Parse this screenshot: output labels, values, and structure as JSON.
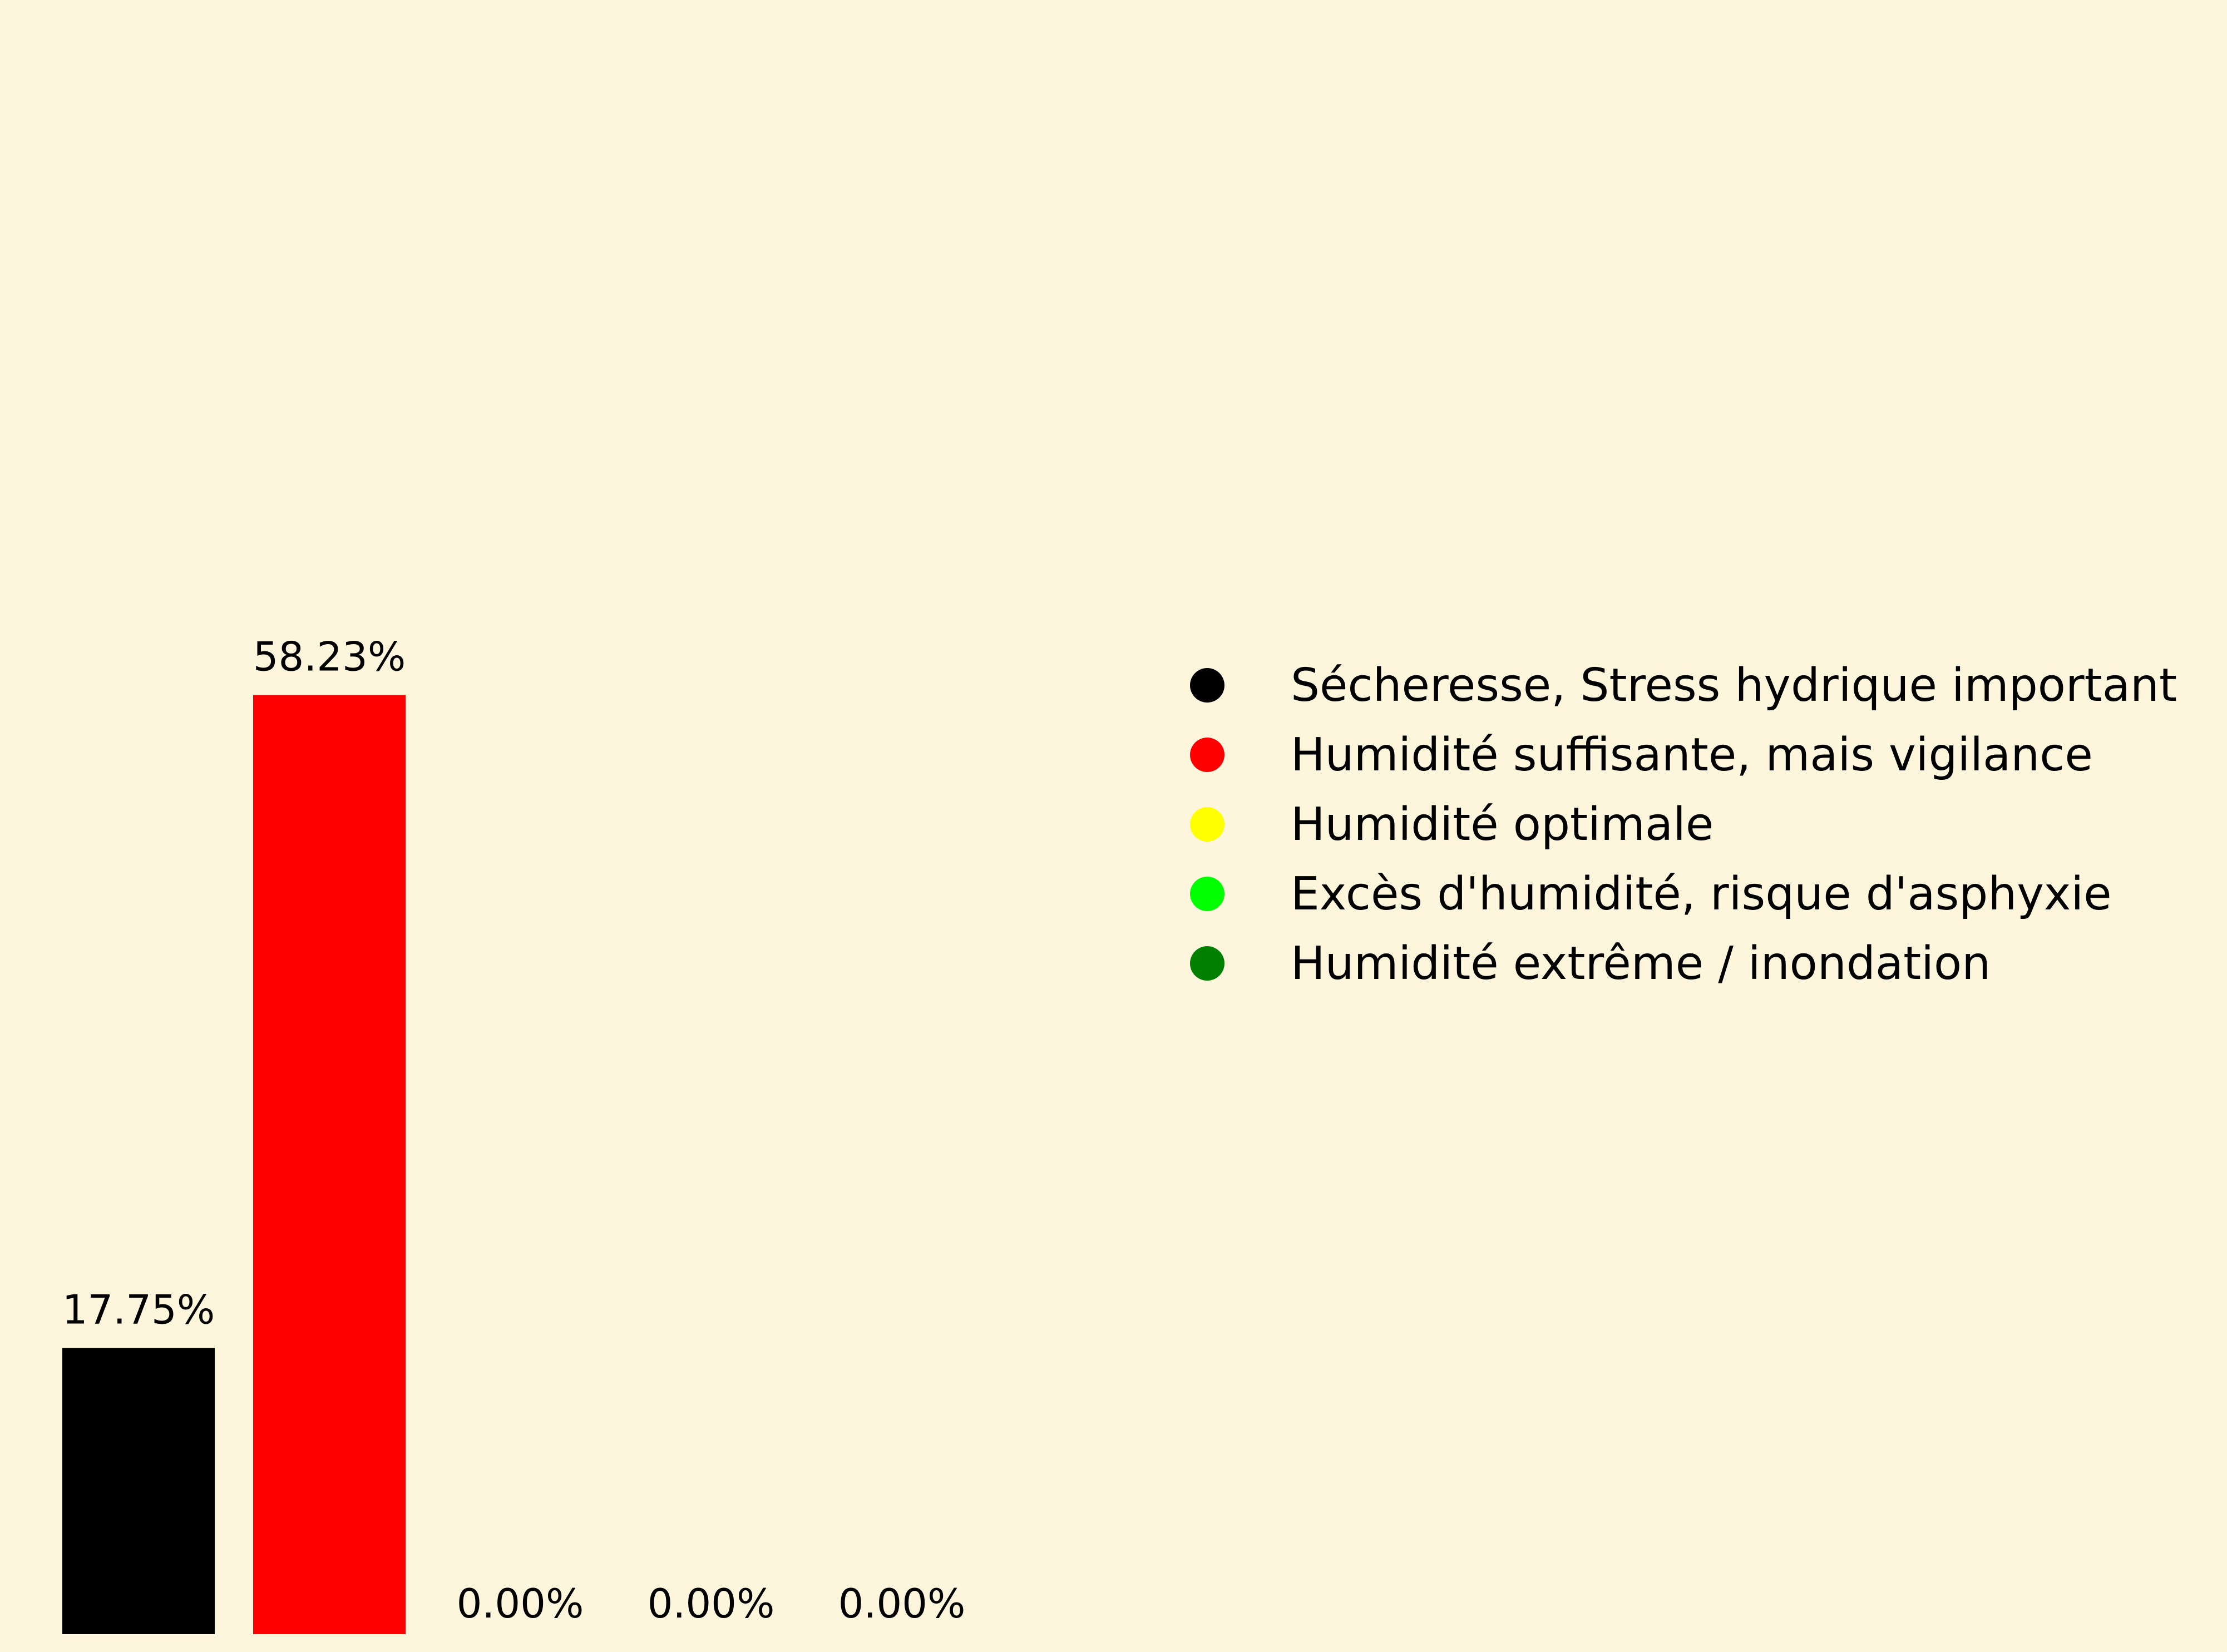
{
  "chart_data": {
    "type": "bar",
    "title": "",
    "xlabel": "",
    "ylabel": "",
    "ylim": [
      0,
      100
    ],
    "categories": [
      "Sécheresse, Stress hydrique important",
      "Humidité suffisante, mais vigilance",
      "Humidité optimale",
      "Excès d'humidité, risque d'asphyxie",
      "Humidité extrême / inondation"
    ],
    "values": [
      17.75,
      58.23,
      0.0,
      0.0,
      0.0
    ],
    "value_labels": [
      "17.75%",
      "58.23%",
      "0.00%",
      "0.00%",
      "0.00%"
    ],
    "colors": [
      "#000000",
      "#ff0000",
      "#ffff00",
      "#00ff00",
      "#008000"
    ],
    "legend": {
      "placement": "right",
      "entries": [
        {
          "label": "Sécheresse, Stress hydrique important",
          "color": "#000000"
        },
        {
          "label": "Humidité suffisante, mais vigilance",
          "color": "#ff0000"
        },
        {
          "label": "Humidité optimale",
          "color": "#ffff00"
        },
        {
          "label": "Excès d'humidité, risque d'asphyxie",
          "color": "#00ff00"
        },
        {
          "label": "Humidité extrême / inondation",
          "color": "#008000"
        }
      ]
    },
    "grid": false,
    "axes_visible": false,
    "background_color": "#fdf6dc"
  }
}
